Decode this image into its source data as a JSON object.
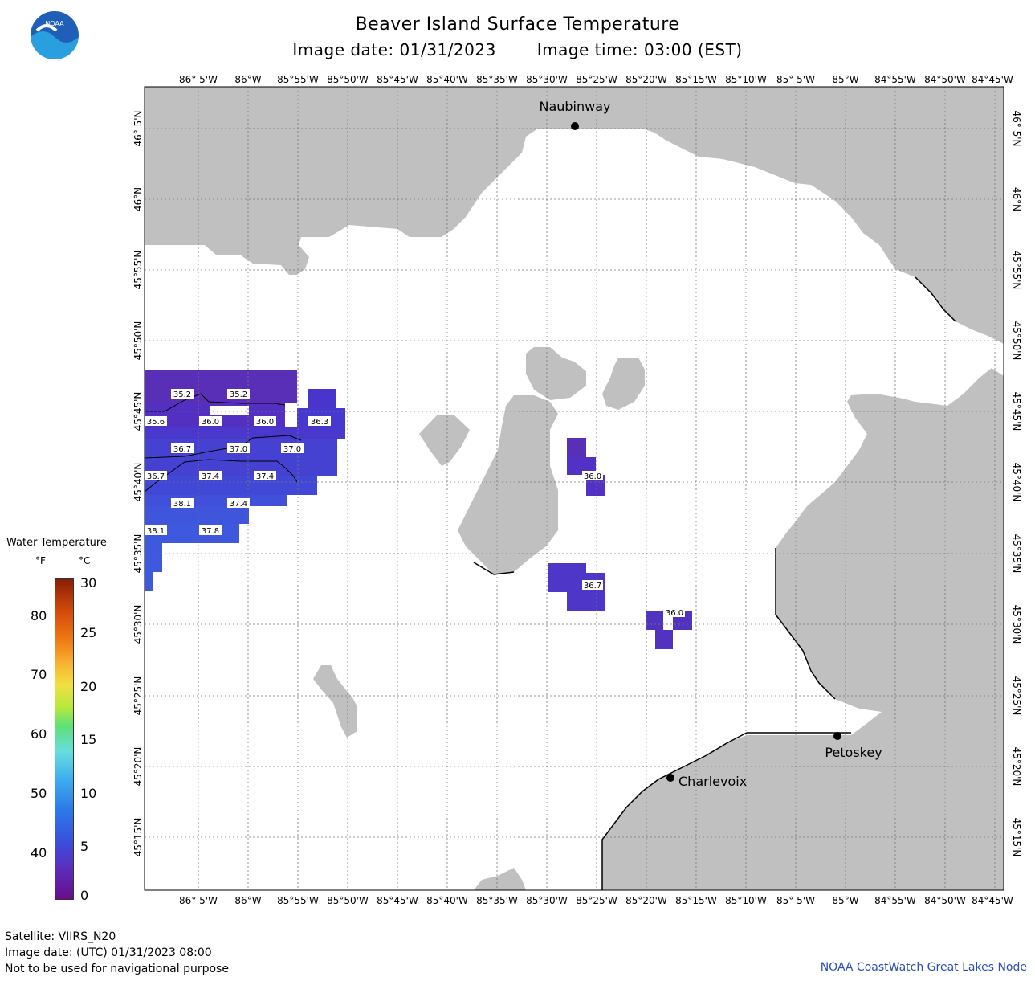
{
  "title": "Beaver Island Surface Temperature",
  "image_date": "Image date: 01/31/2023",
  "image_time": "Image time: 03:00 (EST)",
  "logo_text": "NOAA",
  "lon_labels": [
    "86° 5'W",
    "86°W",
    "85°55'W",
    "85°50'W",
    "85°45'W",
    "85°40'W",
    "85°35'W",
    "85°30'W",
    "85°25'W",
    "85°20'W",
    "85°15'W",
    "85°10'W",
    "85° 5'W",
    "85°W",
    "84°55'W",
    "84°50'W",
    "84°45'W"
  ],
  "lat_labels": [
    "46° 5'N",
    "46°N",
    "45°55'N",
    "45°50'N",
    "45°45'N",
    "45°40'N",
    "45°35'N",
    "45°30'N",
    "45°25'N",
    "45°20'N",
    "45°15'N"
  ],
  "cities": {
    "naubinway": "Naubinway",
    "charlevoix": "Charlevoix",
    "petoskey": "Petoskey"
  },
  "temperature_labels": [
    "35.2",
    "35.2",
    "35.6",
    "36.0",
    "36.0",
    "36.3",
    "36.7",
    "37.0",
    "37.0",
    "36.7",
    "37.4",
    "37.4",
    "38.1",
    "37.4",
    "38.1",
    "37.8",
    "36.0",
    "36.7",
    "36.0"
  ],
  "legend": {
    "title": "Water Temperature",
    "unit_f": "°F",
    "unit_c": "°C",
    "ticks_f": [
      "80",
      "70",
      "60",
      "50",
      "40"
    ],
    "ticks_c": [
      "30",
      "25",
      "20",
      "15",
      "10",
      "5",
      "0"
    ]
  },
  "footer": {
    "satellite": "Satellite: VIIRS_N20",
    "image_date_utc": "Image date: (UTC) 01/31/2023  08:00",
    "disclaimer": "Not to be used for navigational purpose",
    "credit": "NOAA CoastWatch Great Lakes Node"
  },
  "colors": {
    "land": "#c0c0c0",
    "water_cold": "#5a2fc0",
    "water_mid": "#4040d0",
    "credit": "#2b4fb8"
  }
}
